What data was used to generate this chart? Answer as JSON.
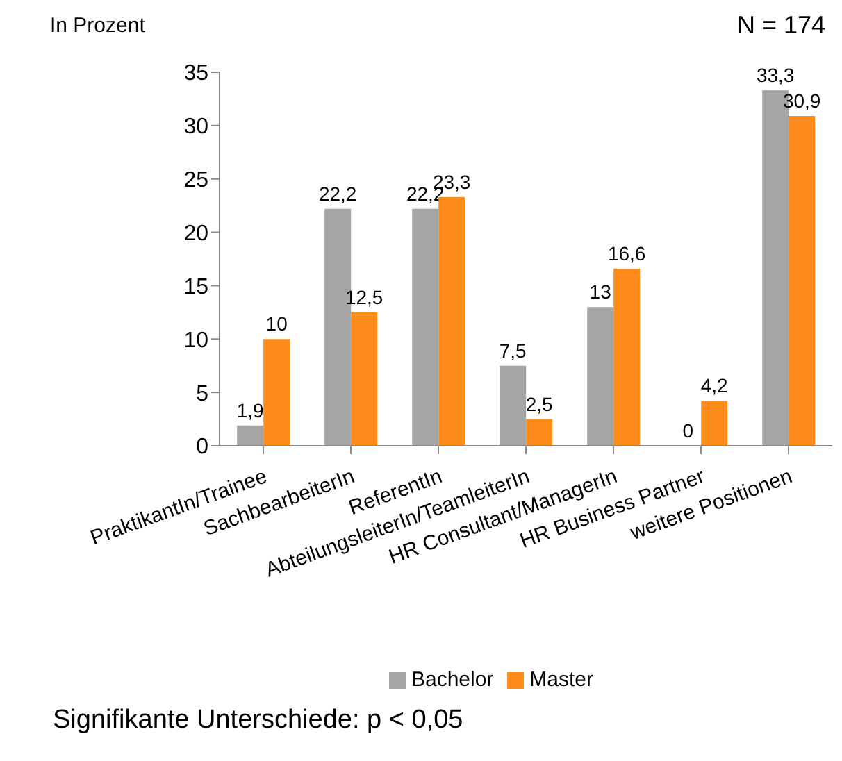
{
  "chart_data": {
    "type": "bar",
    "ylabel": "In Prozent",
    "categories": [
      "PraktikantIn/Trainee",
      "SachbearbeiterIn",
      "ReferentIn",
      "AbteilungsleiterIn/TeamleiterIn",
      "HR Consultant/ManagerIn",
      "HR Business Partner",
      "weitere Positionen"
    ],
    "series": [
      {
        "name": "Bachelor",
        "color": "#a5a5a5",
        "values": [
          1.9,
          22.2,
          22.2,
          7.5,
          13,
          0,
          33.3
        ],
        "value_labels": [
          "1,9",
          "22,2",
          "22,2",
          "7,5",
          "13",
          "0",
          "33,3"
        ]
      },
      {
        "name": "Master",
        "color": "#ff8c1a",
        "values": [
          10,
          12.5,
          23.3,
          2.5,
          16.6,
          4.2,
          30.9
        ],
        "value_labels": [
          "10",
          "12,5",
          "23,3",
          "2,5",
          "16,6",
          "4,2",
          "30,9"
        ]
      }
    ],
    "ylim": [
      0,
      35
    ],
    "yticks": [
      0,
      5,
      10,
      15,
      20,
      25,
      30,
      35
    ],
    "legend": "bottom",
    "annotations": [
      "N = 174",
      "Signifikante Unterschiede: p < 0,05"
    ]
  }
}
